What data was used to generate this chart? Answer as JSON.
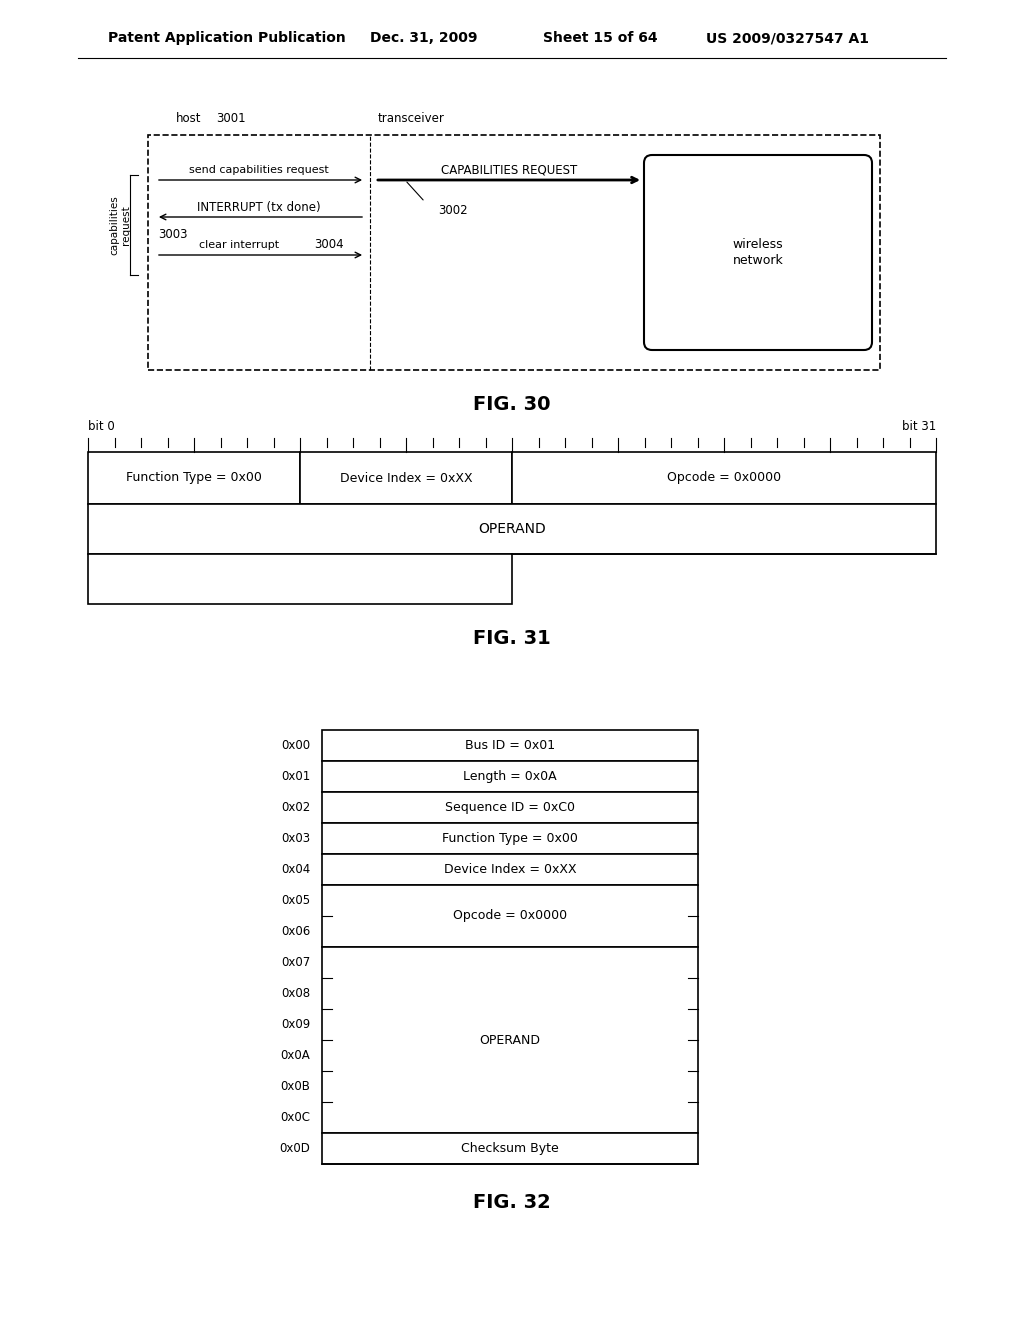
{
  "bg_color": "#ffffff",
  "header_text": "Patent Application Publication",
  "header_date": "Dec. 31, 2009",
  "header_sheet": "Sheet 15 of 64",
  "header_patent": "US 2009/0327547 A1",
  "fig30_label": "FIG. 30",
  "fig31_label": "FIG. 31",
  "fig32_label": "FIG. 32",
  "fig30": {
    "host_label": "host",
    "host_num": "3001",
    "transceiver_label": "transceiver",
    "msg1": "send capabilities request",
    "msg2": "INTERRUPT (tx done)",
    "msg3": "clear interrupt",
    "num3003": "3003",
    "num3004": "3004",
    "num3002": "3002",
    "cap_req": "CAPABILITIES REQUEST",
    "wireless": "wireless\nnetwork",
    "brace_label": "capabilities\nrequest"
  },
  "fig31": {
    "bit0": "bit 0",
    "bit31": "bit 31",
    "row1_cells": [
      "Function Type = 0x00",
      "Device Index = 0xXX",
      "Opcode = 0x0000"
    ],
    "row1_bits": [
      8,
      8,
      16
    ],
    "row2_cell": "OPERAND"
  },
  "fig32": {
    "render_rows": [
      {
        "addr": "0x00",
        "label": "Bus ID = 0x01",
        "span": 1
      },
      {
        "addr": "0x01",
        "label": "Length = 0x0A",
        "span": 1
      },
      {
        "addr": "0x02",
        "label": "Sequence ID = 0xC0",
        "span": 1
      },
      {
        "addr": "0x03",
        "label": "Function Type = 0x00",
        "span": 1
      },
      {
        "addr": "0x04",
        "label": "Device Index = 0xXX",
        "span": 1
      },
      {
        "addr": "0x05",
        "label": "Opcode = 0x0000",
        "span": 2
      },
      {
        "addr": "0x06",
        "label": "",
        "span": 0
      },
      {
        "addr": "0x07",
        "label": "OPERAND",
        "span": 6
      },
      {
        "addr": "0x08",
        "label": "",
        "span": 0
      },
      {
        "addr": "0x09",
        "label": "",
        "span": 0
      },
      {
        "addr": "0x0A",
        "label": "",
        "span": 0
      },
      {
        "addr": "0x0B",
        "label": "",
        "span": 0
      },
      {
        "addr": "0x0C",
        "label": "",
        "span": 0
      },
      {
        "addr": "0x0D",
        "label": "Checksum Byte",
        "span": 1
      }
    ]
  }
}
